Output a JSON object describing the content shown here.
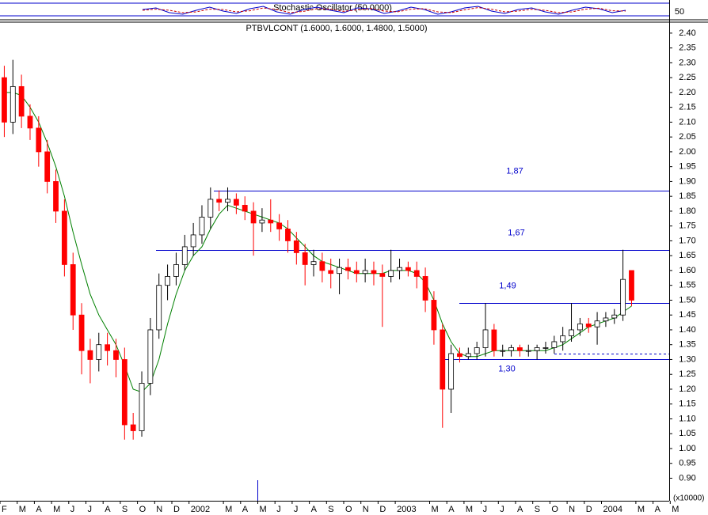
{
  "chart_data": {
    "type": "candlestick",
    "title": "PTBVLCONT (1.6000, 1.6000, 1.4800, 1.5000)",
    "categories": [
      "F",
      null,
      "M",
      null,
      "A",
      null,
      "M",
      null,
      "J",
      null,
      "J",
      null,
      "A",
      null,
      "S",
      null,
      "O",
      null,
      "N",
      null,
      "D",
      null,
      "2002",
      null,
      null,
      null,
      "M",
      null,
      "A",
      null,
      "M",
      null,
      "J",
      null,
      "J",
      null,
      "A",
      null,
      "S",
      null,
      "O",
      null,
      "N",
      null,
      "D",
      null,
      "2003",
      null,
      null,
      null,
      "M",
      null,
      "A",
      null,
      "M",
      null,
      "J",
      null,
      "J",
      null,
      "A",
      null,
      "S",
      null,
      "O",
      null,
      "N",
      null,
      "D",
      null,
      "2004",
      null,
      null,
      null,
      "M",
      null,
      "A",
      null,
      "M",
      null
    ],
    "open": [
      2.25,
      2.1,
      2.22,
      2.12,
      2.08,
      2.0,
      1.9,
      1.8,
      1.62,
      1.45,
      1.33,
      1.3,
      1.35,
      1.33,
      1.3,
      1.08,
      1.06,
      1.22,
      1.4,
      1.55,
      1.58,
      1.62,
      1.68,
      1.72,
      1.78,
      1.84,
      1.83,
      1.84,
      1.82,
      1.8,
      1.76,
      1.77,
      1.76,
      1.74,
      1.7,
      1.66,
      1.62,
      1.63,
      1.6,
      1.59,
      1.61,
      1.6,
      1.59,
      1.6,
      1.59,
      1.58,
      1.6,
      1.61,
      1.6,
      1.58,
      1.5,
      1.4,
      1.2,
      1.32,
      1.31,
      1.32,
      1.34,
      1.4,
      1.33,
      1.33,
      1.34,
      1.33,
      1.33,
      1.34,
      1.34,
      1.36,
      1.38,
      1.4,
      1.42,
      1.41,
      1.43,
      1.44,
      1.45,
      1.6,
      null,
      null,
      null,
      null,
      null,
      null
    ],
    "high": [
      2.29,
      2.31,
      2.26,
      2.16,
      2.12,
      2.04,
      1.94,
      1.84,
      1.66,
      1.49,
      1.37,
      1.39,
      1.39,
      1.37,
      1.34,
      1.12,
      1.26,
      1.44,
      1.59,
      1.62,
      1.66,
      1.72,
      1.76,
      1.82,
      1.88,
      1.87,
      1.88,
      1.86,
      1.85,
      1.83,
      1.81,
      1.84,
      1.79,
      1.77,
      1.73,
      1.69,
      1.67,
      1.66,
      1.64,
      1.64,
      1.64,
      1.63,
      1.64,
      1.63,
      1.62,
      1.67,
      1.64,
      1.63,
      1.63,
      1.61,
      1.53,
      1.42,
      1.35,
      1.34,
      1.34,
      1.36,
      1.49,
      1.42,
      1.35,
      1.35,
      1.35,
      1.35,
      1.35,
      1.36,
      1.38,
      1.41,
      1.49,
      1.44,
      1.44,
      1.46,
      1.46,
      1.47,
      1.67,
      1.6,
      null,
      null,
      null,
      null,
      null,
      null
    ],
    "low": [
      2.05,
      2.06,
      2.08,
      2.04,
      1.95,
      1.86,
      1.76,
      1.58,
      1.4,
      1.25,
      1.22,
      1.26,
      1.28,
      1.24,
      1.03,
      1.03,
      1.04,
      1.18,
      1.37,
      1.5,
      1.55,
      1.6,
      1.65,
      1.69,
      1.74,
      1.8,
      1.8,
      1.79,
      1.77,
      1.65,
      1.73,
      1.73,
      1.7,
      1.66,
      1.62,
      1.55,
      1.58,
      1.56,
      1.54,
      1.52,
      1.57,
      1.56,
      1.56,
      1.55,
      1.41,
      1.56,
      1.57,
      1.58,
      1.54,
      1.46,
      1.35,
      1.07,
      1.12,
      1.29,
      1.3,
      1.3,
      1.31,
      1.31,
      1.31,
      1.31,
      1.31,
      1.31,
      1.3,
      1.32,
      1.32,
      1.33,
      1.36,
      1.38,
      1.39,
      1.35,
      1.41,
      1.42,
      1.43,
      1.48,
      null,
      null,
      null,
      null,
      null,
      null
    ],
    "close": [
      2.1,
      2.22,
      2.12,
      2.08,
      2.0,
      1.9,
      1.8,
      1.62,
      1.45,
      1.33,
      1.3,
      1.35,
      1.33,
      1.3,
      1.08,
      1.06,
      1.22,
      1.4,
      1.55,
      1.58,
      1.62,
      1.68,
      1.72,
      1.78,
      1.84,
      1.83,
      1.84,
      1.82,
      1.8,
      1.76,
      1.77,
      1.76,
      1.74,
      1.7,
      1.66,
      1.62,
      1.63,
      1.6,
      1.59,
      1.61,
      1.6,
      1.59,
      1.6,
      1.59,
      1.58,
      1.6,
      1.61,
      1.6,
      1.58,
      1.5,
      1.4,
      1.2,
      1.32,
      1.31,
      1.32,
      1.34,
      1.4,
      1.33,
      1.33,
      1.34,
      1.33,
      1.33,
      1.34,
      1.34,
      1.36,
      1.38,
      1.4,
      1.42,
      1.41,
      1.43,
      1.44,
      1.45,
      1.57,
      1.5,
      null,
      null,
      null,
      null,
      null,
      null
    ],
    "up_color": "#ffffff",
    "down_color": "#ff0000",
    "ma": {
      "color": "#008000",
      "values": [
        2.2,
        2.2,
        2.19,
        2.15,
        2.1,
        2.03,
        1.95,
        1.85,
        1.73,
        1.62,
        1.52,
        1.45,
        1.4,
        1.35,
        1.28,
        1.2,
        1.19,
        1.22,
        1.3,
        1.42,
        1.52,
        1.6,
        1.65,
        1.68,
        1.74,
        1.79,
        1.82,
        1.81,
        1.8,
        1.79,
        1.78,
        1.77,
        1.76,
        1.74,
        1.71,
        1.68,
        1.65,
        1.63,
        1.62,
        1.61,
        1.6,
        1.59,
        1.59,
        1.59,
        1.59,
        1.6,
        1.6,
        1.6,
        1.59,
        1.56,
        1.5,
        1.42,
        1.36,
        1.32,
        1.31,
        1.31,
        1.32,
        1.33,
        1.33,
        1.33,
        1.33,
        1.33,
        1.33,
        1.33,
        1.34,
        1.35,
        1.37,
        1.39,
        1.41,
        1.42,
        1.43,
        1.44,
        1.46,
        1.48,
        null,
        null,
        null,
        null,
        null,
        null
      ]
    },
    "levels": [
      {
        "value": 1.87,
        "label": "1,87"
      },
      {
        "value": 1.67,
        "label": "1,67"
      },
      {
        "value": 1.49,
        "label": "1,49"
      },
      {
        "value": 1.3,
        "label": "1,30"
      }
    ],
    "level_color": "#0000cc",
    "dashed_level": 1.32,
    "ylim": [
      0.824,
      2.437
    ],
    "yticks": [
      {
        "value": 0.9,
        "label": "0.90"
      },
      0.95,
      {
        "value": 1,
        "label": "1.00"
      },
      1.05,
      {
        "value": 1.1,
        "label": "1.10"
      },
      1.15,
      {
        "value": 1.2,
        "label": "1.20"
      },
      1.25,
      {
        "value": 1.3,
        "label": "1.30"
      },
      1.35,
      {
        "value": 1.4,
        "label": "1.40"
      },
      1.45,
      {
        "value": 1.5,
        "label": "1.50"
      },
      1.55,
      {
        "value": 1.6,
        "label": "1.60"
      },
      1.65,
      {
        "value": 1.7,
        "label": "1.70"
      },
      1.75,
      {
        "value": 1.8,
        "label": "1.80"
      },
      1.85,
      {
        "value": 1.9,
        "label": "1.90"
      },
      1.95,
      {
        "value": 2,
        "label": "2.00"
      },
      2.05,
      {
        "value": 2.1,
        "label": "2.10"
      },
      2.15,
      {
        "value": 2.2,
        "label": "2.20"
      },
      2.25,
      {
        "value": 2.3,
        "label": "2.30"
      },
      2.35,
      {
        "value": 2.4,
        "label": "2.40"
      }
    ],
    "volume_unit": "(x10000)",
    "stochastic": {
      "title": "Stochastic Oscillator (50.0000)",
      "ylim": [
        0,
        100
      ],
      "yticks": [
        50
      ],
      "k": {
        "color": "#0000cc",
        "values": [
          60,
          70,
          40,
          30,
          55,
          75,
          50,
          35,
          65,
          80,
          45,
          30,
          60,
          75,
          55,
          40,
          70,
          65,
          35,
          50,
          75,
          60,
          30,
          45,
          70,
          80,
          50,
          35,
          60,
          70,
          45,
          30,
          55,
          75,
          65,
          40,
          55
        ]
      },
      "d": {
        "color": "#cc0000",
        "values": [
          55,
          62,
          55,
          40,
          45,
          62,
          60,
          45,
          52,
          70,
          60,
          40,
          48,
          65,
          62,
          48,
          58,
          66,
          50,
          45,
          62,
          65,
          45,
          40,
          58,
          72,
          62,
          45,
          50,
          62,
          55,
          40,
          45,
          62,
          68,
          52,
          50
        ]
      }
    }
  }
}
